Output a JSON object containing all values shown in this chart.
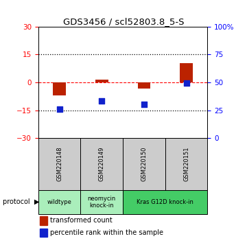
{
  "title": "GDS3456 / scl52803.8_5-S",
  "samples": [
    "GSM220148",
    "GSM220149",
    "GSM220150",
    "GSM220151"
  ],
  "red_values": [
    -7.0,
    1.5,
    -3.5,
    10.5
  ],
  "blue_values": [
    -14.5,
    -10.0,
    -12.0,
    -0.5
  ],
  "ylim_left": [
    -30,
    30
  ],
  "ylim_right": [
    0,
    100
  ],
  "yticks_left": [
    -30,
    -15,
    0,
    15,
    30
  ],
  "yticks_right": [
    0,
    25,
    50,
    75,
    100
  ],
  "red_color": "#BB2200",
  "blue_color": "#1122CC",
  "bar_width": 0.3,
  "legend_red": "transformed count",
  "legend_blue": "percentile rank within the sample",
  "gsm_bg_color": "#CCCCCC",
  "wildtype_color": "#AAEEBB",
  "neomycin_color": "#AAEEBB",
  "kras_color": "#44CC66",
  "protocol_groups": [
    {
      "label": "wildtype",
      "start": 0,
      "end": 1
    },
    {
      "label": "neomycin\nknock-in",
      "start": 1,
      "end": 2
    },
    {
      "label": "Kras G12D knock-in",
      "start": 2,
      "end": 4
    }
  ]
}
